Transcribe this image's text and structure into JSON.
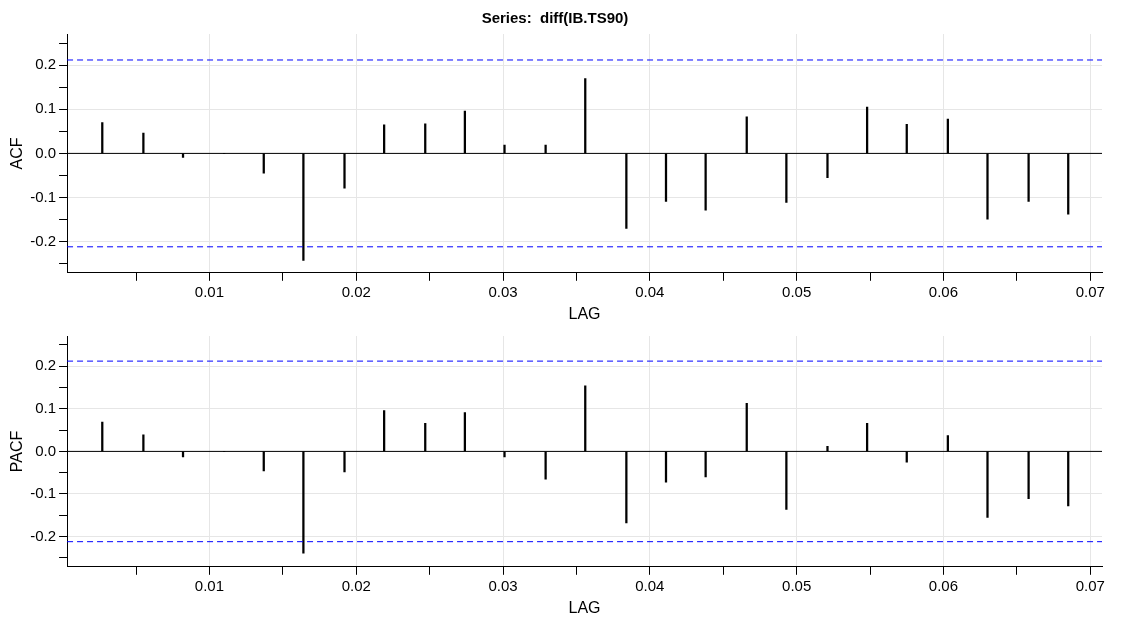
{
  "chart_data": [
    {
      "type": "bar",
      "title": "Series:  diff(IB.TS90)",
      "xlabel": "LAG",
      "ylabel": "ACF",
      "x": [
        0.0027,
        0.0055,
        0.0082,
        0.011,
        0.0137,
        0.0164,
        0.0192,
        0.0219,
        0.0247,
        0.0274,
        0.0301,
        0.0329,
        0.0356,
        0.0384,
        0.0411,
        0.0438,
        0.0466,
        0.0493,
        0.0521,
        0.0548,
        0.0575,
        0.0603,
        0.063,
        0.0658,
        0.0685
      ],
      "series": [
        {
          "color": "#000000",
          "values": [
            0.07,
            0.046,
            -0.009,
            0,
            -0.045,
            -0.243,
            -0.079,
            0.065,
            0.067,
            0.096,
            0.019,
            0.019,
            0.17,
            -0.17,
            -0.109,
            -0.129,
            0.083,
            -0.111,
            -0.055,
            0.105,
            0.066,
            0.078,
            -0.149,
            -0.109,
            -0.138
          ]
        }
      ],
      "xlim": [
        0.0003,
        0.0708
      ],
      "ylim": [
        -0.271,
        0.271
      ],
      "xticks": [
        {
          "value": 0.005,
          "label": null
        },
        0.01,
        {
          "value": 0.015,
          "label": null
        },
        0.02,
        {
          "value": 0.025,
          "label": null
        },
        0.03,
        {
          "value": 0.035,
          "label": null
        },
        0.04,
        {
          "value": 0.045,
          "label": null
        },
        0.05,
        {
          "value": 0.055,
          "label": null
        },
        0.06,
        {
          "value": 0.065,
          "label": null
        },
        0.07
      ],
      "yticks": [
        {
          "value": -0.25,
          "label": null
        },
        -0.2,
        {
          "value": -0.15,
          "label": null
        },
        -0.1,
        {
          "value": -0.05,
          "label": null
        },
        {
          "value": 0,
          "label": "0.0"
        },
        {
          "value": 0.05,
          "label": null
        },
        0.1,
        {
          "value": 0.15,
          "label": null
        },
        0.2,
        {
          "value": 0.25,
          "label": null
        }
      ],
      "ref_lines": [
        {
          "axis": "y",
          "value": 0.212,
          "color": "#0000ff",
          "line_style": "dashed"
        },
        {
          "axis": "y",
          "value": -0.212,
          "color": "#0000ff",
          "line_style": "dashed"
        }
      ],
      "grid": true,
      "legend": false
    },
    {
      "type": "bar",
      "xlabel": "LAG",
      "ylabel": "PACF",
      "x": [
        0.0027,
        0.0055,
        0.0082,
        0.011,
        0.0137,
        0.0164,
        0.0192,
        0.0219,
        0.0247,
        0.0274,
        0.0301,
        0.0329,
        0.0356,
        0.0384,
        0.0411,
        0.0438,
        0.0466,
        0.0493,
        0.0521,
        0.0548,
        0.0575,
        0.0603,
        0.063,
        0.0658,
        0.0685
      ],
      "series": [
        {
          "color": "#000000",
          "values": [
            0.069,
            0.039,
            -0.013,
            0,
            -0.046,
            -0.239,
            -0.048,
            0.096,
            0.066,
            0.091,
            -0.013,
            -0.065,
            0.154,
            -0.168,
            -0.072,
            -0.06,
            0.113,
            -0.136,
            0.012,
            0.066,
            -0.025,
            0.037,
            -0.155,
            -0.111,
            -0.128
          ]
        }
      ],
      "xlim": [
        0.0003,
        0.0708
      ],
      "ylim": [
        -0.271,
        0.271
      ],
      "xticks": [
        {
          "value": 0.005,
          "label": null
        },
        0.01,
        {
          "value": 0.015,
          "label": null
        },
        0.02,
        {
          "value": 0.025,
          "label": null
        },
        0.03,
        {
          "value": 0.035,
          "label": null
        },
        0.04,
        {
          "value": 0.045,
          "label": null
        },
        0.05,
        {
          "value": 0.055,
          "label": null
        },
        0.06,
        {
          "value": 0.065,
          "label": null
        },
        0.07
      ],
      "yticks": [
        {
          "value": -0.25,
          "label": null
        },
        -0.2,
        {
          "value": -0.15,
          "label": null
        },
        -0.1,
        {
          "value": -0.05,
          "label": null
        },
        {
          "value": 0,
          "label": "0.0"
        },
        {
          "value": 0.05,
          "label": null
        },
        0.1,
        {
          "value": 0.15,
          "label": null
        },
        0.2,
        {
          "value": 0.25,
          "label": null
        }
      ],
      "ref_lines": [
        {
          "axis": "y",
          "value": 0.212,
          "color": "#0000ff",
          "line_style": "dashed"
        },
        {
          "axis": "y",
          "value": -0.212,
          "color": "#0000ff",
          "line_style": "dashed"
        }
      ],
      "grid": true,
      "legend": false
    }
  ]
}
